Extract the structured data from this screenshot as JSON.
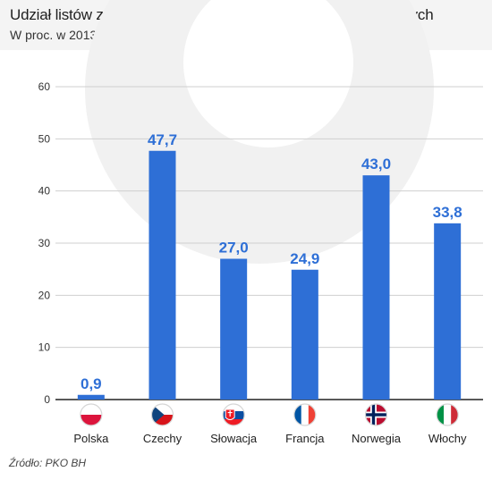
{
  "header": {
    "title": "Udział listów zastawnych w finansowaniu kredytów hipotecznych",
    "subtitle": "W proc. w 2013 r."
  },
  "source": "Źródło: PKO BH",
  "chart_data": {
    "type": "bar",
    "categories": [
      "Polska",
      "Czechy",
      "Słowacja",
      "Francja",
      "Norwegia",
      "Włochy"
    ],
    "values": [
      0.9,
      47.7,
      27.0,
      24.9,
      43.0,
      33.8
    ],
    "value_labels": [
      "0,9",
      "47,7",
      "27,0",
      "24,9",
      "43,0",
      "33,8"
    ],
    "flag_icons": [
      "flag-poland-icon",
      "flag-czech-icon",
      "flag-slovakia-icon",
      "flag-france-icon",
      "flag-norway-icon",
      "flag-italy-icon"
    ],
    "ylim": [
      0,
      60
    ],
    "yticks": [
      0,
      10,
      20,
      30,
      40,
      50,
      60
    ],
    "grid": true,
    "bar_color": "#2e6fd6",
    "label_color": "#2e6fd6"
  }
}
